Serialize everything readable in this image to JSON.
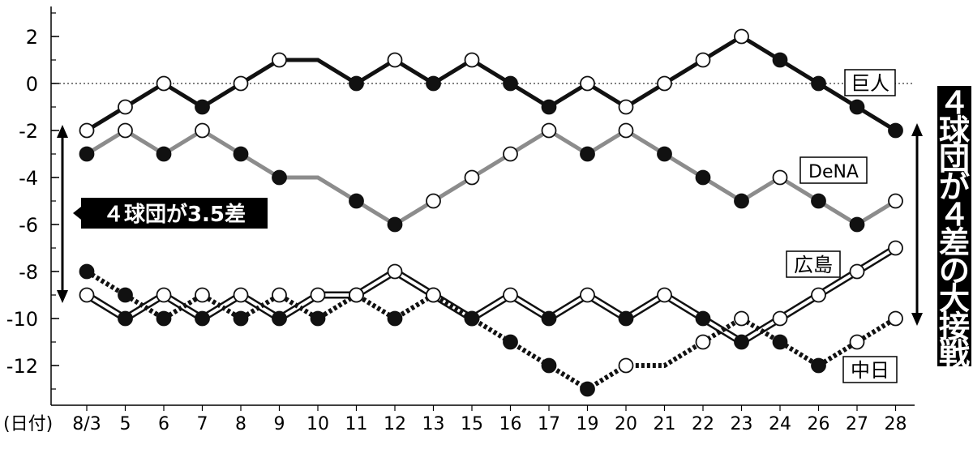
{
  "chart_data": {
    "type": "line",
    "xlabel": "(日付)",
    "categories": [
      "8/3",
      "5",
      "6",
      "7",
      "8",
      "9",
      "10",
      "11",
      "12",
      "13",
      "15",
      "16",
      "17",
      "19",
      "20",
      "21",
      "22",
      "23",
      "24",
      "26",
      "27",
      "28"
    ],
    "y_ticks": [
      "2",
      "0",
      "-2",
      "-4",
      "-6",
      "-8",
      "-10",
      "-12"
    ],
    "ylim": [
      -14,
      3
    ],
    "reference_line": 0,
    "series": [
      {
        "name": "巨人",
        "style": "thick-black",
        "color": "#111111",
        "values": [
          -2,
          -1,
          0,
          -1,
          0,
          1,
          1,
          0,
          1,
          0,
          1,
          0,
          -1,
          0,
          -1,
          0,
          1,
          2,
          1,
          0,
          -1,
          -2
        ],
        "markers": [
          "o",
          "o",
          "o",
          "f",
          "o",
          "o",
          null,
          "f",
          "o",
          "f",
          "o",
          "f",
          "f",
          "o",
          "o",
          "o",
          "o",
          "o",
          "f",
          "f",
          "f",
          "f"
        ]
      },
      {
        "name": "DeNA",
        "style": "thick-gray",
        "color": "#8c8c8c",
        "values": [
          -3,
          -2,
          -3,
          -2,
          -3,
          -4,
          -4,
          -5,
          -6,
          -5,
          -4,
          -3,
          -2,
          -3,
          -2,
          -3,
          -4,
          -5,
          -4,
          -5,
          -6,
          -5
        ],
        "markers": [
          "f",
          "o",
          "f",
          "o",
          "f",
          "f",
          null,
          "f",
          "f",
          "o",
          "o",
          "o",
          "o",
          "f",
          "o",
          "f",
          "f",
          "f",
          "o",
          "f",
          "f",
          "o"
        ]
      },
      {
        "name": "広島",
        "style": "double",
        "color": "#111111",
        "values": [
          -9,
          -10,
          -9,
          -10,
          -9,
          -10,
          -9,
          -9,
          -8,
          -9,
          -10,
          -9,
          -10,
          -9,
          -10,
          -9,
          -10,
          -11,
          -10,
          -9,
          -8,
          -7
        ],
        "markers": [
          "o",
          "f",
          "o",
          "f",
          "o",
          "f",
          "o",
          "o",
          "o",
          "o",
          "f",
          "o",
          "f",
          "o",
          "f",
          "o",
          "f",
          "f",
          "o",
          "o",
          "o",
          "o"
        ]
      },
      {
        "name": "中日",
        "style": "dotted",
        "color": "#111111",
        "values": [
          -8,
          -9,
          -10,
          -9,
          -10,
          -9,
          -10,
          -9,
          -10,
          -9,
          -10,
          -11,
          -12,
          -13,
          -12,
          -12,
          -11,
          -10,
          -11,
          -12,
          -11,
          -10
        ],
        "markers": [
          "f",
          "f",
          "f",
          "o",
          "f",
          "o",
          "f",
          "o",
          "f",
          "o",
          "f",
          "f",
          "f",
          "f",
          "o",
          null,
          "o",
          "o",
          "f",
          "f",
          "o",
          "o"
        ]
      }
    ],
    "annotations": {
      "left_banner": "４球団が3.5差",
      "right_banner": "４球団が４差の大接戦"
    }
  }
}
